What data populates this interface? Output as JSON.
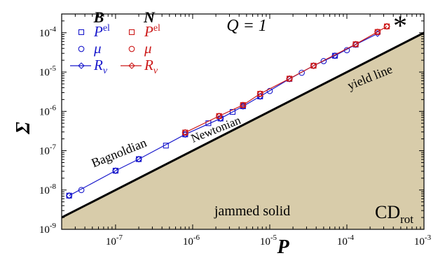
{
  "chart_data": {
    "type": "scatter",
    "x_scale": "log",
    "y_scale": "log",
    "xlim": [
      2e-08,
      0.001
    ],
    "ylim": [
      1e-09,
      0.0003
    ],
    "xlabel": "P",
    "ylabel": "Σ",
    "title": "Q = 1",
    "x_tick_labels": [
      {
        "value": 1e-07,
        "base": "10",
        "exp": "-7"
      },
      {
        "value": 1e-06,
        "base": "10",
        "exp": "-6"
      },
      {
        "value": 1e-05,
        "base": "10",
        "exp": "-5"
      },
      {
        "value": 0.0001,
        "base": "10",
        "exp": "-4"
      },
      {
        "value": 0.001,
        "base": "10",
        "exp": "-3"
      }
    ],
    "y_tick_labels": [
      {
        "value": 1e-09,
        "base": "10",
        "exp": "-9"
      },
      {
        "value": 1e-08,
        "base": "10",
        "exp": "-8"
      },
      {
        "value": 1e-07,
        "base": "10",
        "exp": "-7"
      },
      {
        "value": 1e-06,
        "base": "10",
        "exp": "-6"
      },
      {
        "value": 1e-05,
        "base": "10",
        "exp": "-5"
      },
      {
        "value": 0.0001,
        "base": "10",
        "exp": "-4"
      }
    ],
    "legend": {
      "columns": [
        {
          "header": "B",
          "color": "#1a1acc"
        },
        {
          "header": "N",
          "color": "#cc1a1a"
        }
      ],
      "rows": [
        {
          "label": "P",
          "sup": "el",
          "marker": "square"
        },
        {
          "label": "μ",
          "sup": "",
          "marker": "circle"
        },
        {
          "label": "R",
          "sub": "v",
          "marker": "diamond-line"
        }
      ]
    },
    "annotations": {
      "bagnoldian": "Bagnoldian",
      "newtonian": "Newtonian",
      "yield_line": "yield line",
      "jammed_solid": "jammed solid",
      "model_main": "CD",
      "model_sub": "rot",
      "marker_star": "*"
    },
    "yield_line": {
      "x": [
        2e-08,
        0.001
      ],
      "y": [
        2e-09,
        0.0001
      ]
    },
    "series": [
      {
        "group": "B",
        "quantity": "Pel",
        "marker": "square",
        "color": "#1a1acc",
        "x": [
          2.5e-08,
          1e-07,
          2e-07,
          4.5e-07,
          8e-07,
          1.6e-06,
          2.3e-06,
          3.3e-06,
          4.5e-06,
          7.5e-06,
          1.8e-05,
          3.7e-05,
          7e-05,
          0.00013
        ],
        "y": [
          7.2e-09,
          3.1e-08,
          6.1e-08,
          1.35e-07,
          2.6e-07,
          5e-07,
          6.6e-07,
          9.7e-07,
          1.35e-06,
          2.4e-06,
          6.7e-06,
          1.45e-05,
          2.6e-05,
          5e-05
        ]
      },
      {
        "group": "B",
        "quantity": "mu",
        "marker": "circle",
        "color": "#1a1acc",
        "x": [
          2.5e-08,
          3.6e-08,
          1e-07,
          2e-07,
          8e-07,
          2.3e-06,
          4.5e-06,
          7.5e-06,
          1e-05,
          1.8e-05,
          2.6e-05,
          3.7e-05,
          5e-05,
          7e-05,
          0.0001,
          0.00013
        ],
        "y": [
          7.2e-09,
          1e-08,
          3.1e-08,
          6.1e-08,
          2.6e-07,
          6.6e-07,
          1.35e-06,
          2.4e-06,
          3.3e-06,
          6.7e-06,
          9.6e-06,
          1.45e-05,
          1.9e-05,
          2.6e-05,
          3.6e-05,
          5e-05
        ]
      },
      {
        "group": "B",
        "quantity": "Rv",
        "marker": "diamond-line",
        "color": "#1a1acc",
        "x": [
          2.5e-08,
          1e-07,
          2e-07,
          8e-07,
          2.3e-06,
          4.5e-06,
          7.5e-06,
          1.8e-05,
          3.7e-05,
          7e-05,
          0.00013,
          0.00025
        ],
        "y": [
          7.2e-09,
          3.1e-08,
          6.1e-08,
          2.6e-07,
          6.6e-07,
          1.35e-06,
          2.4e-06,
          6.7e-06,
          1.45e-05,
          2.6e-05,
          5e-05,
          9.5e-05
        ]
      },
      {
        "group": "N",
        "quantity": "Pel",
        "marker": "square",
        "color": "#cc1a1a",
        "x": [
          8e-07,
          2.2e-06,
          4.5e-06,
          7.5e-06,
          1.8e-05,
          3.7e-05,
          0.00013,
          0.00025,
          0.00033
        ],
        "y": [
          2.9e-07,
          7.6e-07,
          1.45e-06,
          2.8e-06,
          6.8e-06,
          1.45e-05,
          5.1e-05,
          0.000105,
          0.000145
        ]
      },
      {
        "group": "N",
        "quantity": "mu",
        "marker": "circle",
        "color": "#cc1a1a",
        "x": [
          8e-07,
          2.2e-06,
          4.5e-06,
          7.5e-06,
          1.8e-05,
          3.7e-05,
          0.00013,
          0.00025,
          0.00033
        ],
        "y": [
          2.9e-07,
          7.6e-07,
          1.45e-06,
          2.8e-06,
          6.8e-06,
          1.45e-05,
          5.1e-05,
          0.000105,
          0.000145
        ]
      },
      {
        "group": "N",
        "quantity": "Rv",
        "marker": "diamond-line",
        "color": "#cc1a1a",
        "x": [
          8e-07,
          2.2e-06,
          4.5e-06,
          7.5e-06,
          1.8e-05,
          3.7e-05,
          0.00013,
          0.00025,
          0.00033
        ],
        "y": [
          2.9e-07,
          7.6e-07,
          1.45e-06,
          2.8e-06,
          6.8e-06,
          1.45e-05,
          5.1e-05,
          0.000105,
          0.000145
        ]
      }
    ],
    "colors": {
      "jammed_fill": "#d8ccaa",
      "blue": "#1a1acc",
      "red": "#cc1a1a",
      "star": "#1a7a1a"
    }
  }
}
